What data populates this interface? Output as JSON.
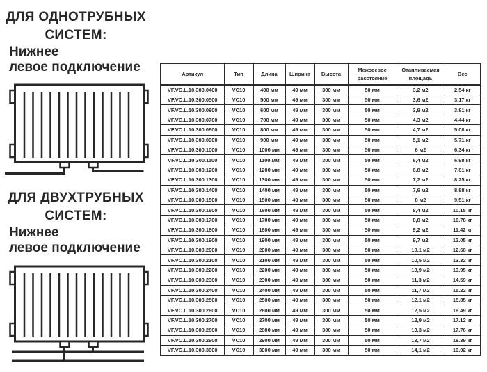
{
  "colors": {
    "ink": "#272727",
    "border": "#2b2b2b",
    "background": "#ffffff"
  },
  "left_panel": {
    "single_pipe": {
      "title_line1": "ДЛЯ ОДНОТРУБНЫХ",
      "title_line2": "СИСТЕМ:",
      "subtitle_line1": "Нижнее",
      "subtitle_line2": "левое подключение",
      "diagram_icon": "radiator-bottom-left-single-pipe-icon"
    },
    "two_pipe": {
      "title_line1": "ДЛЯ ДВУХТРУБНЫХ",
      "title_line2": "СИСТЕМ:",
      "subtitle_line1": "Нижнее",
      "subtitle_line2": "левое подключение",
      "diagram_icon": "radiator-bottom-left-two-pipe-icon"
    }
  },
  "table": {
    "columns": [
      "Артикул",
      "Тип",
      "Длина",
      "Ширина",
      "Высота",
      "Межосевое расстояние",
      "Отапливаемая площадь",
      "Вес"
    ],
    "rows": [
      [
        "VF.VC.L.10.300.0400",
        "VC10",
        "400 мм",
        "49 мм",
        "300 мм",
        "50 мм",
        "3,2 м2",
        "2.54 кг"
      ],
      [
        "VF.VC.L.10.300.0500",
        "VC10",
        "500 мм",
        "49 мм",
        "300 мм",
        "50 мм",
        "3,6 м2",
        "3.17 кг"
      ],
      [
        "VF.VC.L.10.300.0600",
        "VC10",
        "600 мм",
        "49 мм",
        "300 мм",
        "50 мм",
        "3,9 м2",
        "3.81 кг"
      ],
      [
        "VF.VC.L.10.300.0700",
        "VC10",
        "700 мм",
        "49 мм",
        "300 мм",
        "50 мм",
        "4,3 м2",
        "4.44 кг"
      ],
      [
        "VF.VC.L.10.300.0800",
        "VC10",
        "800 мм",
        "49 мм",
        "300 мм",
        "50 мм",
        "4,7 м2",
        "5.08 кг"
      ],
      [
        "VF.VC.L.10.300.0900",
        "VC10",
        "900 мм",
        "49 мм",
        "300 мм",
        "50 мм",
        "5,1 м2",
        "5.71 кг"
      ],
      [
        "VF.VC.L.10.300.1000",
        "VC10",
        "1000 мм",
        "49 мм",
        "300 мм",
        "50 мм",
        "6 м2",
        "6.34 кг"
      ],
      [
        "VF.VC.L.10.300.1100",
        "VC10",
        "1100 мм",
        "49 мм",
        "300 мм",
        "50 мм",
        "6,4 м2",
        "6.98 кг"
      ],
      [
        "VF.VC.L.10.300.1200",
        "VC10",
        "1200 мм",
        "49 мм",
        "300 мм",
        "50 мм",
        "6,8 м2",
        "7.61 кг"
      ],
      [
        "VF.VC.L.10.300.1300",
        "VC10",
        "1300 мм",
        "49 мм",
        "300 мм",
        "50 мм",
        "7,2 м2",
        "8.25 кг"
      ],
      [
        "VF.VC.L.10.300.1400",
        "VC10",
        "1400 мм",
        "49 мм",
        "300 мм",
        "50 мм",
        "7,6 м2",
        "8.88 кг"
      ],
      [
        "VF.VC.L.10.300.1500",
        "VC10",
        "1500 мм",
        "49 мм",
        "300 мм",
        "50 мм",
        "8 м2",
        "9.51 кг"
      ],
      [
        "VF.VC.L.10.300.1600",
        "VC10",
        "1600 мм",
        "49 мм",
        "300 мм",
        "50 мм",
        "8,4 м2",
        "10.15 кг"
      ],
      [
        "VF.VC.L.10.300.1700",
        "VC10",
        "1700 мм",
        "49 мм",
        "300 мм",
        "50 мм",
        "8,8 м2",
        "10.78 кг"
      ],
      [
        "VF.VC.L.10.300.1800",
        "VC10",
        "1800 мм",
        "49 мм",
        "300 мм",
        "50 мм",
        "9,2 м2",
        "11.42 кг"
      ],
      [
        "VF.VC.L.10.300.1900",
        "VC10",
        "1900 мм",
        "49 мм",
        "300 мм",
        "50 мм",
        "9,7 м2",
        "12.05 кг"
      ],
      [
        "VF.VC.L.10.300.2000",
        "VC10",
        "2000 мм",
        "49 мм",
        "300 мм",
        "50 мм",
        "10,1 м2",
        "12.68 кг"
      ],
      [
        "VF.VC.L.10.300.2100",
        "VC10",
        "2100 мм",
        "49 мм",
        "300 мм",
        "50 мм",
        "10,5 м2",
        "13.32 кг"
      ],
      [
        "VF.VC.L.10.300.2200",
        "VC10",
        "2200 мм",
        "49 мм",
        "300 мм",
        "50 мм",
        "10,9 м2",
        "13.95 кг"
      ],
      [
        "VF.VC.L.10.300.2300",
        "VC10",
        "2300 мм",
        "49 мм",
        "300 мм",
        "50 мм",
        "11,3 м2",
        "14.59 кг"
      ],
      [
        "VF.VC.L.10.300.2400",
        "VC10",
        "2400 мм",
        "49 мм",
        "300 мм",
        "50 мм",
        "11,7 м2",
        "15.22 кг"
      ],
      [
        "VF.VC.L.10.300.2500",
        "VC10",
        "2500 мм",
        "49 мм",
        "300 мм",
        "50 мм",
        "12,1 м2",
        "15.85 кг"
      ],
      [
        "VF.VC.L.10.300.2600",
        "VC10",
        "2600 мм",
        "49 мм",
        "300 мм",
        "50 мм",
        "12,5 м2",
        "16.49 кг"
      ],
      [
        "VF.VC.L.10.300.2700",
        "VC10",
        "2700 мм",
        "49 мм",
        "300 мм",
        "50 мм",
        "12,9 м2",
        "17.12 кг"
      ],
      [
        "VF.VC.L.10.300.2800",
        "VC10",
        "2800 мм",
        "49 мм",
        "300 мм",
        "50 мм",
        "13,3 м2",
        "17.76 кг"
      ],
      [
        "VF.VC.L.10.300.2900",
        "VC10",
        "2900 мм",
        "49 мм",
        "300 мм",
        "50 мм",
        "13,7 м2",
        "18.39 кг"
      ],
      [
        "VF.VC.L.10.300.3000",
        "VC10",
        "3000 мм",
        "49 мм",
        "300 мм",
        "50 мм",
        "14,1 м2",
        "19.02 кг"
      ]
    ]
  }
}
